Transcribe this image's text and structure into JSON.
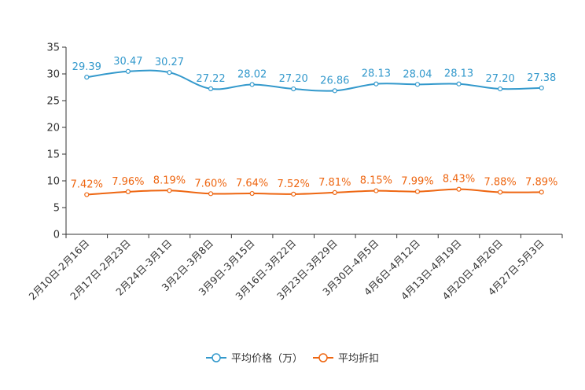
{
  "chart_data": {
    "type": "line",
    "title": "",
    "xlabel": "",
    "ylabel": "",
    "ylim": [
      0,
      35
    ],
    "yticks": [
      0,
      5,
      10,
      15,
      20,
      25,
      30,
      35
    ],
    "categories": [
      "2月10日-2月16日",
      "2月17日-2月23日",
      "2月24日-3月1日",
      "3月2日-3月8日",
      "3月9日-3月15日",
      "3月16日-3月22日",
      "3月23日-3月29日",
      "3月30日-4月5日",
      "4月6日-4月12日",
      "4月13日-4月19日",
      "4月20日-4月26日",
      "4月27日-5月3日"
    ],
    "series": [
      {
        "name": "平均价格（万）",
        "color": "#3399cc",
        "values": [
          29.39,
          30.47,
          30.27,
          27.22,
          28.02,
          27.2,
          26.86,
          28.13,
          28.04,
          28.13,
          27.2,
          27.38
        ],
        "labels": [
          "29.39",
          "30.47",
          "30.27",
          "27.22",
          "28.02",
          "27.20",
          "26.86",
          "28.13",
          "28.04",
          "28.13",
          "27.20",
          "27.38"
        ]
      },
      {
        "name": "平均折扣",
        "color": "#ee6611",
        "values": [
          7.42,
          7.96,
          8.19,
          7.6,
          7.64,
          7.52,
          7.81,
          8.15,
          7.99,
          8.43,
          7.88,
          7.89
        ],
        "labels": [
          "7.42%",
          "7.96%",
          "8.19%",
          "7.60%",
          "7.64%",
          "7.52%",
          "7.81%",
          "8.15%",
          "7.99%",
          "8.43%",
          "7.88%",
          "7.89%"
        ]
      }
    ],
    "legend": "bottom-center",
    "grid": false
  }
}
